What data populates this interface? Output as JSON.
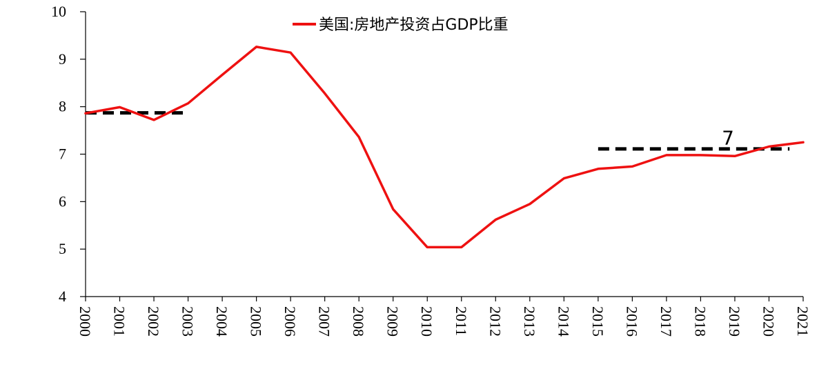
{
  "chart_data": {
    "type": "line",
    "x": [
      "2000",
      "2001",
      "2002",
      "2003",
      "2004",
      "2005",
      "2006",
      "2007",
      "2008",
      "2009",
      "2010",
      "2011",
      "2012",
      "2013",
      "2014",
      "2015",
      "2016",
      "2017",
      "2018",
      "2019",
      "2020",
      "2021"
    ],
    "series": [
      {
        "name": "美国:房地产投资占GDP比重",
        "color": "#ee1111",
        "values": [
          7.86,
          7.99,
          7.72,
          8.07,
          8.67,
          9.26,
          9.14,
          8.28,
          7.36,
          5.84,
          5.04,
          5.04,
          5.62,
          5.95,
          6.49,
          6.69,
          6.74,
          6.98,
          6.98,
          6.96,
          7.16,
          7.25
        ]
      }
    ],
    "reference_lines": [
      {
        "x_start": "2000",
        "x_end": "2003",
        "y": 7.87,
        "color": "#000000",
        "style": "dashed"
      },
      {
        "x_start": "2015",
        "x_end": "2020.6",
        "y": 7.11,
        "color": "#000000",
        "style": "dashed"
      }
    ],
    "annotations": [
      {
        "text": "7",
        "x": "2018.8",
        "y": 7.2
      }
    ],
    "yticks": [
      4,
      5,
      6,
      7,
      8,
      9,
      10
    ],
    "ylim": [
      4,
      10
    ],
    "grid": false,
    "legend_position": "top-center",
    "title": "",
    "xlabel": "",
    "ylabel": ""
  }
}
